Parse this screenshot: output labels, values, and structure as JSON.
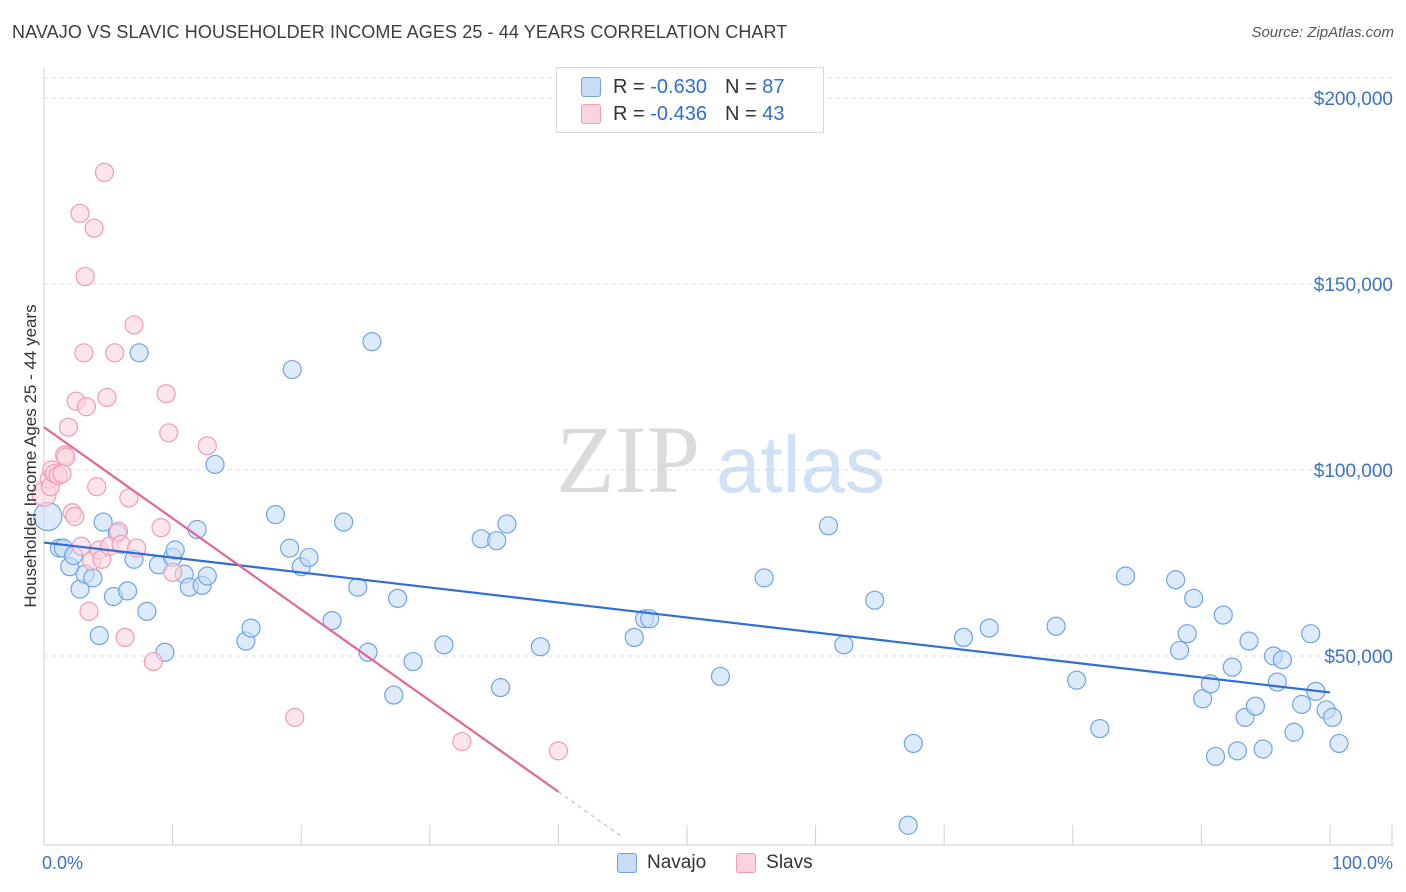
{
  "header": {
    "title": "NAVAJO VS SLAVIC HOUSEHOLDER INCOME AGES 25 - 44 YEARS CORRELATION CHART",
    "source": "Source: ZipAtlas.com"
  },
  "watermark": {
    "zip": "ZIP",
    "atlas": "atlas"
  },
  "legend": {
    "rows": [
      {
        "r_label": "R =",
        "r_value": "-0.630",
        "n_label": "N =",
        "n_value": "87",
        "color": "#6fa3e8"
      },
      {
        "r_label": "R =",
        "r_value": "-0.436",
        "n_label": "N =",
        "n_value": "43",
        "color": "#f19bb5"
      }
    ]
  },
  "bottom_legend": [
    {
      "label": "Navajo",
      "color": "#6fa3e8"
    },
    {
      "label": "Slavs",
      "color": "#f19bb5"
    }
  ],
  "chart_data": {
    "type": "scatter",
    "xlabel": "",
    "ylabel": "Householder Income Ages 25 - 44 years",
    "xlim": [
      0,
      100
    ],
    "ylim": [
      0,
      205000
    ],
    "x_tick_labels": [
      "0.0%",
      "100.0%"
    ],
    "y_ticks": [
      {
        "value": 50000,
        "label": "$50,000"
      },
      {
        "value": 100000,
        "label": "$100,000"
      },
      {
        "value": 150000,
        "label": "$150,000"
      },
      {
        "value": 200000,
        "label": "$200,000"
      }
    ],
    "grid": true,
    "colors": {
      "navajo": "#6fa3e8",
      "navajo_line": "#2e6ed6",
      "slavs": "#f19bb5",
      "slavs_line": "#e06795"
    },
    "series": [
      {
        "name": "Navajo",
        "trend": {
          "x": [
            0,
            100
          ],
          "y": [
            80500,
            40200
          ]
        },
        "points": [
          [
            0.3,
            87500
          ],
          [
            1.2,
            79000
          ],
          [
            1.5,
            79000
          ],
          [
            2.0,
            74000
          ],
          [
            2.3,
            77000
          ],
          [
            2.8,
            68000
          ],
          [
            3.2,
            72000
          ],
          [
            3.8,
            71000
          ],
          [
            4.3,
            55500
          ],
          [
            4.6,
            86000
          ],
          [
            5.4,
            66000
          ],
          [
            5.7,
            83000
          ],
          [
            6.5,
            67500
          ],
          [
            7.0,
            76000
          ],
          [
            7.4,
            131500
          ],
          [
            8.0,
            62000
          ],
          [
            8.9,
            74500
          ],
          [
            9.4,
            51000
          ],
          [
            10.0,
            76500
          ],
          [
            10.2,
            78500
          ],
          [
            10.9,
            72000
          ],
          [
            11.3,
            68500
          ],
          [
            11.9,
            84000
          ],
          [
            12.3,
            69000
          ],
          [
            12.7,
            71500
          ],
          [
            13.3,
            101500
          ],
          [
            15.7,
            54000
          ],
          [
            16.1,
            57500
          ],
          [
            18.0,
            88000
          ],
          [
            19.1,
            79000
          ],
          [
            19.3,
            127000
          ],
          [
            20.0,
            74000
          ],
          [
            20.6,
            76500
          ],
          [
            22.4,
            59500
          ],
          [
            23.3,
            86000
          ],
          [
            24.4,
            68500
          ],
          [
            25.2,
            51000
          ],
          [
            25.5,
            134500
          ],
          [
            27.2,
            39500
          ],
          [
            27.5,
            65500
          ],
          [
            28.7,
            48500
          ],
          [
            31.1,
            53000
          ],
          [
            34.0,
            81500
          ],
          [
            35.2,
            81000
          ],
          [
            35.5,
            41500
          ],
          [
            36.0,
            85500
          ],
          [
            38.6,
            52500
          ],
          [
            45.9,
            55000
          ],
          [
            46.7,
            60000
          ],
          [
            47.1,
            60000
          ],
          [
            52.6,
            44500
          ],
          [
            56.0,
            71000
          ],
          [
            61.0,
            85000
          ],
          [
            62.2,
            53000
          ],
          [
            64.6,
            65000
          ],
          [
            67.6,
            26500
          ],
          [
            67.2,
            4500
          ],
          [
            71.5,
            55000
          ],
          [
            73.5,
            57500
          ],
          [
            78.7,
            58000
          ],
          [
            80.3,
            43500
          ],
          [
            82.1,
            30500
          ],
          [
            84.1,
            71500
          ],
          [
            88.0,
            70500
          ],
          [
            88.3,
            51500
          ],
          [
            88.9,
            56000
          ],
          [
            89.4,
            65500
          ],
          [
            90.1,
            38500
          ],
          [
            90.7,
            42500
          ],
          [
            91.1,
            23000
          ],
          [
            91.7,
            61000
          ],
          [
            92.4,
            47000
          ],
          [
            92.8,
            24500
          ],
          [
            93.4,
            33500
          ],
          [
            93.7,
            54000
          ],
          [
            94.2,
            36500
          ],
          [
            94.8,
            25000
          ],
          [
            95.6,
            50000
          ],
          [
            95.9,
            43000
          ],
          [
            96.3,
            49000
          ],
          [
            97.2,
            29500
          ],
          [
            97.8,
            37000
          ],
          [
            98.5,
            56000
          ],
          [
            98.9,
            40500
          ],
          [
            99.7,
            35500
          ],
          [
            100.2,
            33500
          ],
          [
            100.7,
            26500
          ]
        ]
      },
      {
        "name": "Slavs",
        "trend": {
          "x": [
            0,
            40
          ],
          "y": [
            111500,
            13500
          ]
        },
        "points": [
          [
            0.0,
            93500
          ],
          [
            0.4,
            97500
          ],
          [
            0.5,
            95500
          ],
          [
            0.6,
            100000
          ],
          [
            0.8,
            99000
          ],
          [
            1.1,
            98500
          ],
          [
            1.4,
            99000
          ],
          [
            1.6,
            104000
          ],
          [
            1.7,
            103500
          ],
          [
            1.9,
            111500
          ],
          [
            2.2,
            88500
          ],
          [
            2.4,
            87500
          ],
          [
            2.5,
            118500
          ],
          [
            2.8,
            169000
          ],
          [
            2.9,
            79500
          ],
          [
            3.1,
            131500
          ],
          [
            3.2,
            152000
          ],
          [
            3.3,
            117000
          ],
          [
            3.5,
            62000
          ],
          [
            3.7,
            75500
          ],
          [
            3.9,
            165000
          ],
          [
            4.1,
            95500
          ],
          [
            4.3,
            78500
          ],
          [
            4.5,
            76000
          ],
          [
            4.7,
            180000
          ],
          [
            4.9,
            119500
          ],
          [
            5.1,
            79500
          ],
          [
            5.5,
            131500
          ],
          [
            5.8,
            83500
          ],
          [
            6.0,
            80000
          ],
          [
            6.3,
            55000
          ],
          [
            6.6,
            92500
          ],
          [
            7.0,
            139000
          ],
          [
            7.2,
            79000
          ],
          [
            8.5,
            48500
          ],
          [
            9.1,
            84500
          ],
          [
            9.5,
            120500
          ],
          [
            9.7,
            110000
          ],
          [
            10.0,
            72500
          ],
          [
            12.7,
            106500
          ],
          [
            19.5,
            33500
          ],
          [
            32.5,
            27000
          ],
          [
            40.0,
            24500
          ]
        ]
      }
    ]
  }
}
